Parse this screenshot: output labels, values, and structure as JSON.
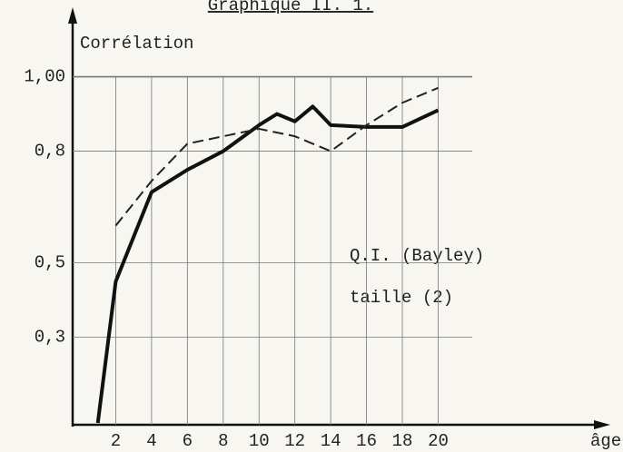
{
  "chart_data": {
    "type": "line",
    "title": "Graphique II. 1.",
    "ylabel": "Corrélation",
    "xlabel": "âge",
    "annotations": [
      "Q.I. (Bayley)",
      "taille (2)"
    ],
    "series": [
      {
        "color": "#111111",
        "dash": false,
        "x": [
          1,
          2,
          4,
          6,
          8,
          10,
          11,
          12,
          13,
          14,
          16,
          18,
          20
        ],
        "values": [
          0.07,
          0.45,
          0.69,
          0.75,
          0.8,
          0.87,
          0.9,
          0.88,
          0.92,
          0.87,
          0.865,
          0.865,
          0.91
        ]
      },
      {
        "color": "#222222",
        "dash": true,
        "x": [
          2,
          4,
          6,
          8,
          10,
          12,
          14,
          16,
          18,
          20
        ],
        "values": [
          0.6,
          0.72,
          0.82,
          0.84,
          0.86,
          0.84,
          0.8,
          0.87,
          0.93,
          0.97
        ]
      }
    ],
    "xlim": [
      0,
      29
    ],
    "xticks": [
      2,
      4,
      6,
      8,
      10,
      12,
      14,
      16,
      18,
      20
    ],
    "ylim": [
      0.07,
      1.15
    ],
    "yticks": [
      {
        "value": 0.3,
        "label": "0,3"
      },
      {
        "value": 0.5,
        "label": "0,5"
      },
      {
        "value": 0.8,
        "label": "0,8"
      },
      {
        "value": 1.0,
        "label": "1,00"
      }
    ],
    "grid": true
  }
}
